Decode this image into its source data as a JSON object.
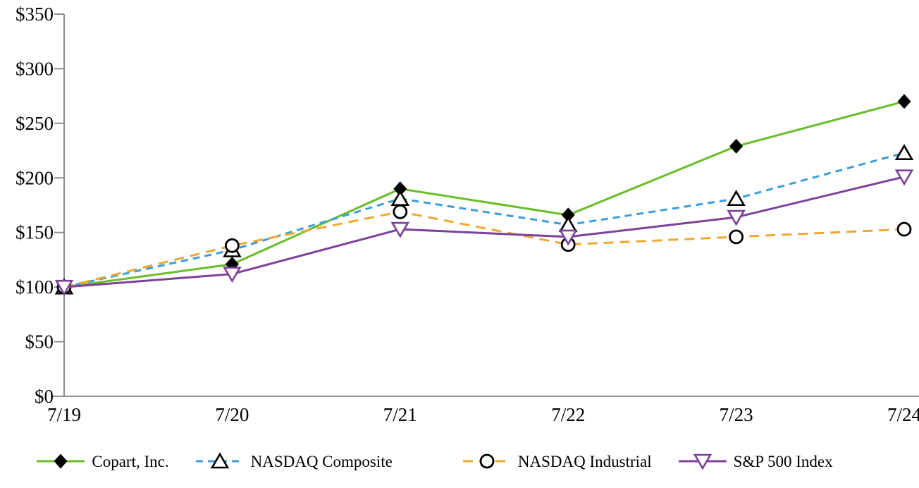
{
  "figure": {
    "background": "#FFFFFF",
    "text_color": "#000000"
  },
  "chart_data": {
    "type": "line",
    "title": "",
    "xlabel": "",
    "ylabel": "",
    "categories": [
      "7/19",
      "7/20",
      "7/21",
      "7/22",
      "7/23",
      "7/24"
    ],
    "series": [
      {
        "name": "Copart, Inc.",
        "values": [
          100,
          121,
          190,
          166,
          229,
          270
        ],
        "line_color": "#69BE28",
        "line_style": "solid",
        "line_dash": "",
        "marker": "filled-diamond",
        "marker_color": "#000000"
      },
      {
        "name": "NASDAQ Composite",
        "values": [
          100,
          134,
          181,
          157,
          181,
          223
        ],
        "line_color": "#3B9DDC",
        "line_style": "dashed",
        "line_dash": "10 7",
        "marker": "open-triangle-up",
        "marker_color": "#000000"
      },
      {
        "name": "NASDAQ Industrial",
        "values": [
          100,
          138,
          169,
          139,
          146,
          153
        ],
        "line_color": "#F0A72D",
        "line_style": "dashed",
        "line_dash": "14 9",
        "marker": "open-circle",
        "marker_color": "#000000"
      },
      {
        "name": "S&P 500 Index",
        "values": [
          100,
          112,
          153,
          146,
          164,
          201
        ],
        "line_color": "#7D419B",
        "line_style": "solid",
        "line_dash": "",
        "marker": "open-triangle-down",
        "marker_color": "#7D419B"
      }
    ],
    "ylim": [
      0,
      350
    ],
    "y_ticks": [
      0,
      50,
      100,
      150,
      200,
      250,
      300,
      350
    ],
    "y_tick_labels": [
      "$0",
      "$50",
      "$100",
      "$150",
      "$200",
      "$250",
      "$300",
      "$350"
    ],
    "grid": false,
    "legend_position": "bottom",
    "axis_color": "#8F8F8F"
  }
}
